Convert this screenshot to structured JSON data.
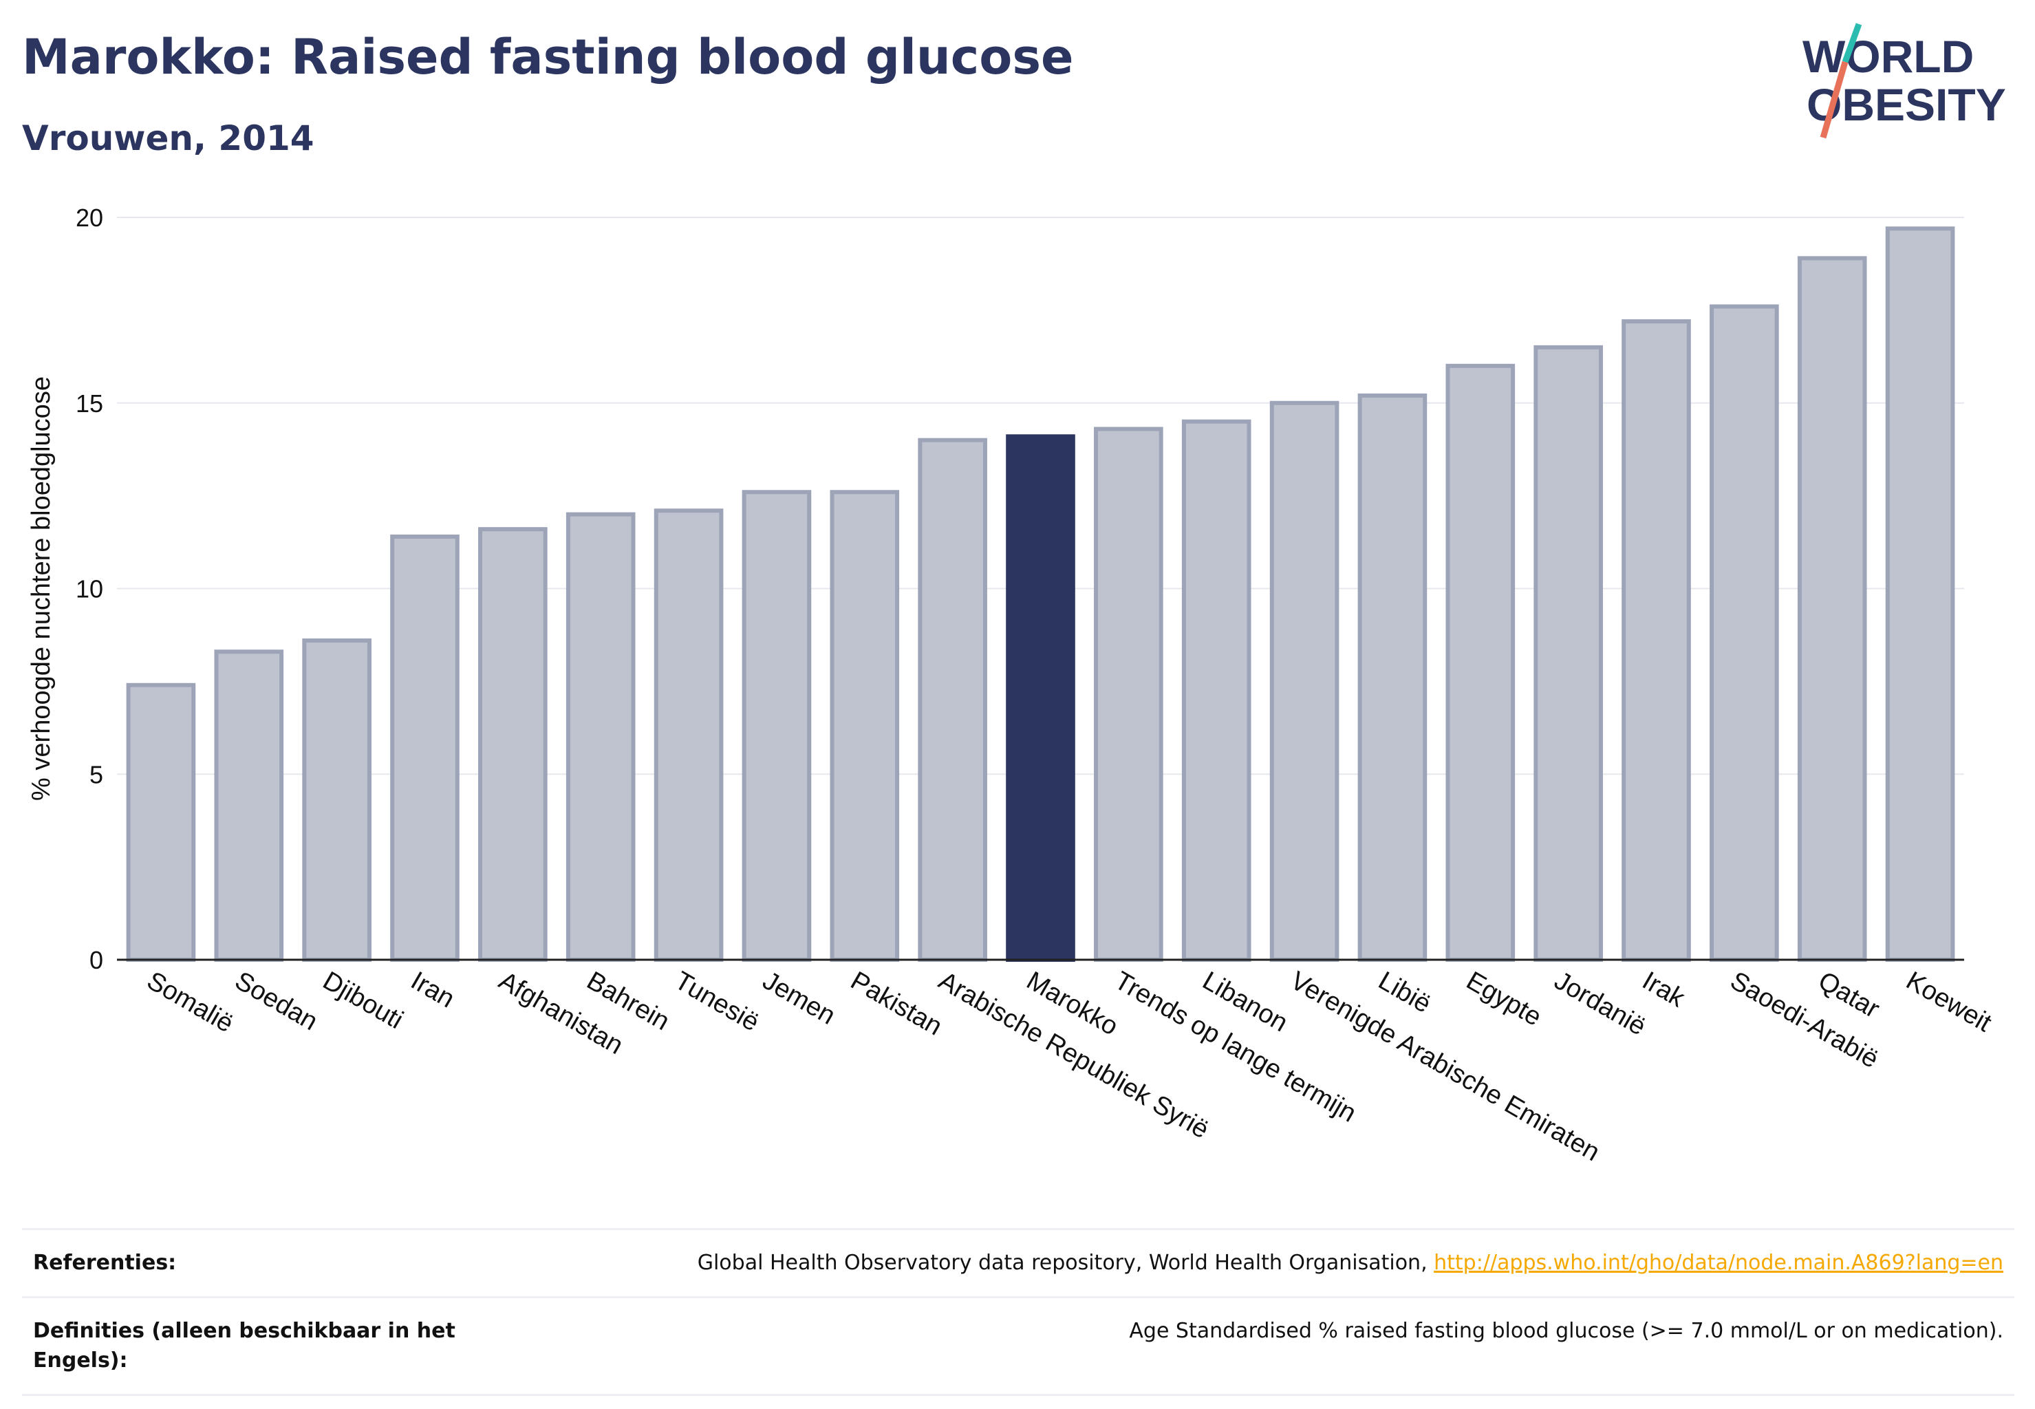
{
  "header": {
    "title": "Marokko: Raised fasting blood glucose",
    "subtitle": "Vrouwen, 2014"
  },
  "logo": {
    "line1": "WORLD",
    "line2": "OBESITY",
    "slash_colors": [
      "#2bbcb0",
      "#e8715a"
    ]
  },
  "colors": {
    "bar": "#bfc3cf",
    "bar_edge": "#9ea4b8",
    "highlight": "#2b355f",
    "text": "#2b355f",
    "link": "#f5a800"
  },
  "chart_data": {
    "type": "bar",
    "title": "Marokko: Raised fasting blood glucose",
    "subtitle": "Vrouwen, 2014",
    "xlabel": "",
    "ylabel": "% verhoogde nuchtere bloedglucose",
    "ylim": [
      0,
      20
    ],
    "yticks": [
      0,
      5,
      10,
      15,
      20
    ],
    "grid": true,
    "highlight": "Marokko",
    "categories": [
      "Somalië",
      "Soedan",
      "Djibouti",
      "Iran",
      "Afghanistan",
      "Bahrein",
      "Tunesië",
      "Jemen",
      "Pakistan",
      "Arabische Republiek Syrië",
      "Marokko",
      "Trends op lange termijn",
      "Libanon",
      "Verenigde Arabische Emiraten",
      "Libië",
      "Egypte",
      "Jordanië",
      "Irak",
      "Saoedi-Arabië",
      "Qatar",
      "Koeweit"
    ],
    "values": [
      7.4,
      8.3,
      8.6,
      11.4,
      11.6,
      12.0,
      12.1,
      12.6,
      12.6,
      14.0,
      14.1,
      14.3,
      14.5,
      15.0,
      15.2,
      16.0,
      16.5,
      17.2,
      17.6,
      18.9,
      19.7
    ]
  },
  "references": [
    {
      "label": "Referenties:",
      "text": "Global Health Observatory data repository, World Health Organisation, ",
      "link": "http://apps.who.int/gho/data/node.main.A869?lang=en"
    },
    {
      "label": "Definities (alleen beschikbaar in het Engels):",
      "text": "Age Standardised % raised fasting blood glucose (>= 7.0 mmol/L or on medication).",
      "link": ""
    }
  ]
}
